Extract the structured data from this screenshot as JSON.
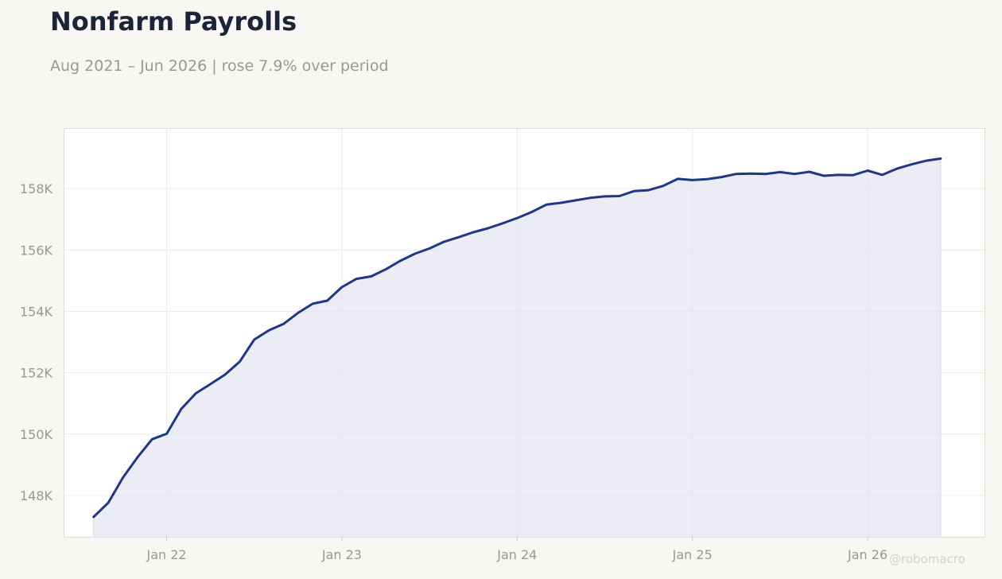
{
  "header": {
    "title": "Nonfarm Payrolls",
    "subtitle": "Aug 2021 – Jun 2026 | rose 7.9% over period"
  },
  "watermark": "@robomacro",
  "colors": {
    "background": "#f8f7f4",
    "plot_background": "#ffffff",
    "line": "#1f3784",
    "area_fill": "#e3e4ef",
    "grid": "#ecebe7",
    "tick_label": "#9a9891"
  },
  "chart_data": {
    "type": "area",
    "title": "Nonfarm Payrolls",
    "subtitle": "Aug 2021 – Jun 2026 | rose 7.9% over period",
    "xlabel": "",
    "ylabel": "",
    "x_start": "2021-08",
    "x_end": "2026-06",
    "xlim": [
      "2021-06",
      "2026-09"
    ],
    "ylim": [
      146650,
      159950
    ],
    "grid": true,
    "legend": "none",
    "x_ticks": [
      {
        "date": "2022-01",
        "label": "Jan 22"
      },
      {
        "date": "2023-01",
        "label": "Jan 23"
      },
      {
        "date": "2024-01",
        "label": "Jan 24"
      },
      {
        "date": "2025-01",
        "label": "Jan 25"
      },
      {
        "date": "2026-01",
        "label": "Jan 26"
      }
    ],
    "y_ticks": [
      {
        "value": 148000,
        "label": "148K"
      },
      {
        "value": 150000,
        "label": "150K"
      },
      {
        "value": 152000,
        "label": "152K"
      },
      {
        "value": 154000,
        "label": "154K"
      },
      {
        "value": 156000,
        "label": "156K"
      },
      {
        "value": 158000,
        "label": "158K"
      }
    ],
    "series": [
      {
        "x": [
          "2021-08",
          "2021-09",
          "2021-10",
          "2021-11",
          "2021-12",
          "2022-01",
          "2022-02",
          "2022-03",
          "2022-04",
          "2022-05",
          "2022-06",
          "2022-07",
          "2022-08",
          "2022-09",
          "2022-10",
          "2022-11",
          "2022-12",
          "2023-01",
          "2023-02",
          "2023-03",
          "2023-04",
          "2023-05",
          "2023-06",
          "2023-07",
          "2023-08",
          "2023-09",
          "2023-10",
          "2023-11",
          "2023-12",
          "2024-01",
          "2024-02",
          "2024-03",
          "2024-04",
          "2024-05",
          "2024-06",
          "2024-07",
          "2024-08",
          "2024-09",
          "2024-10",
          "2024-11",
          "2024-12",
          "2025-01",
          "2025-02",
          "2025-03",
          "2025-04",
          "2025-05",
          "2025-06",
          "2025-07",
          "2025-08",
          "2025-09",
          "2025-10",
          "2025-11",
          "2025-12",
          "2026-01",
          "2026-02",
          "2026-03",
          "2026-04",
          "2026-05",
          "2026-06"
        ],
        "values": [
          147300,
          147760,
          148580,
          149240,
          149830,
          150010,
          150820,
          151330,
          151630,
          151940,
          152360,
          153080,
          153380,
          153590,
          153950,
          154250,
          154350,
          154790,
          155060,
          155140,
          155370,
          155650,
          155880,
          156050,
          156270,
          156420,
          156580,
          156710,
          156870,
          157040,
          157240,
          157480,
          157540,
          157620,
          157700,
          157750,
          157760,
          157920,
          157950,
          158090,
          158320,
          158280,
          158310,
          158380,
          158480,
          158490,
          158480,
          158540,
          158480,
          158550,
          158420,
          158450,
          158440,
          158590,
          158450,
          158650,
          158790,
          158910,
          158980
        ]
      }
    ]
  }
}
